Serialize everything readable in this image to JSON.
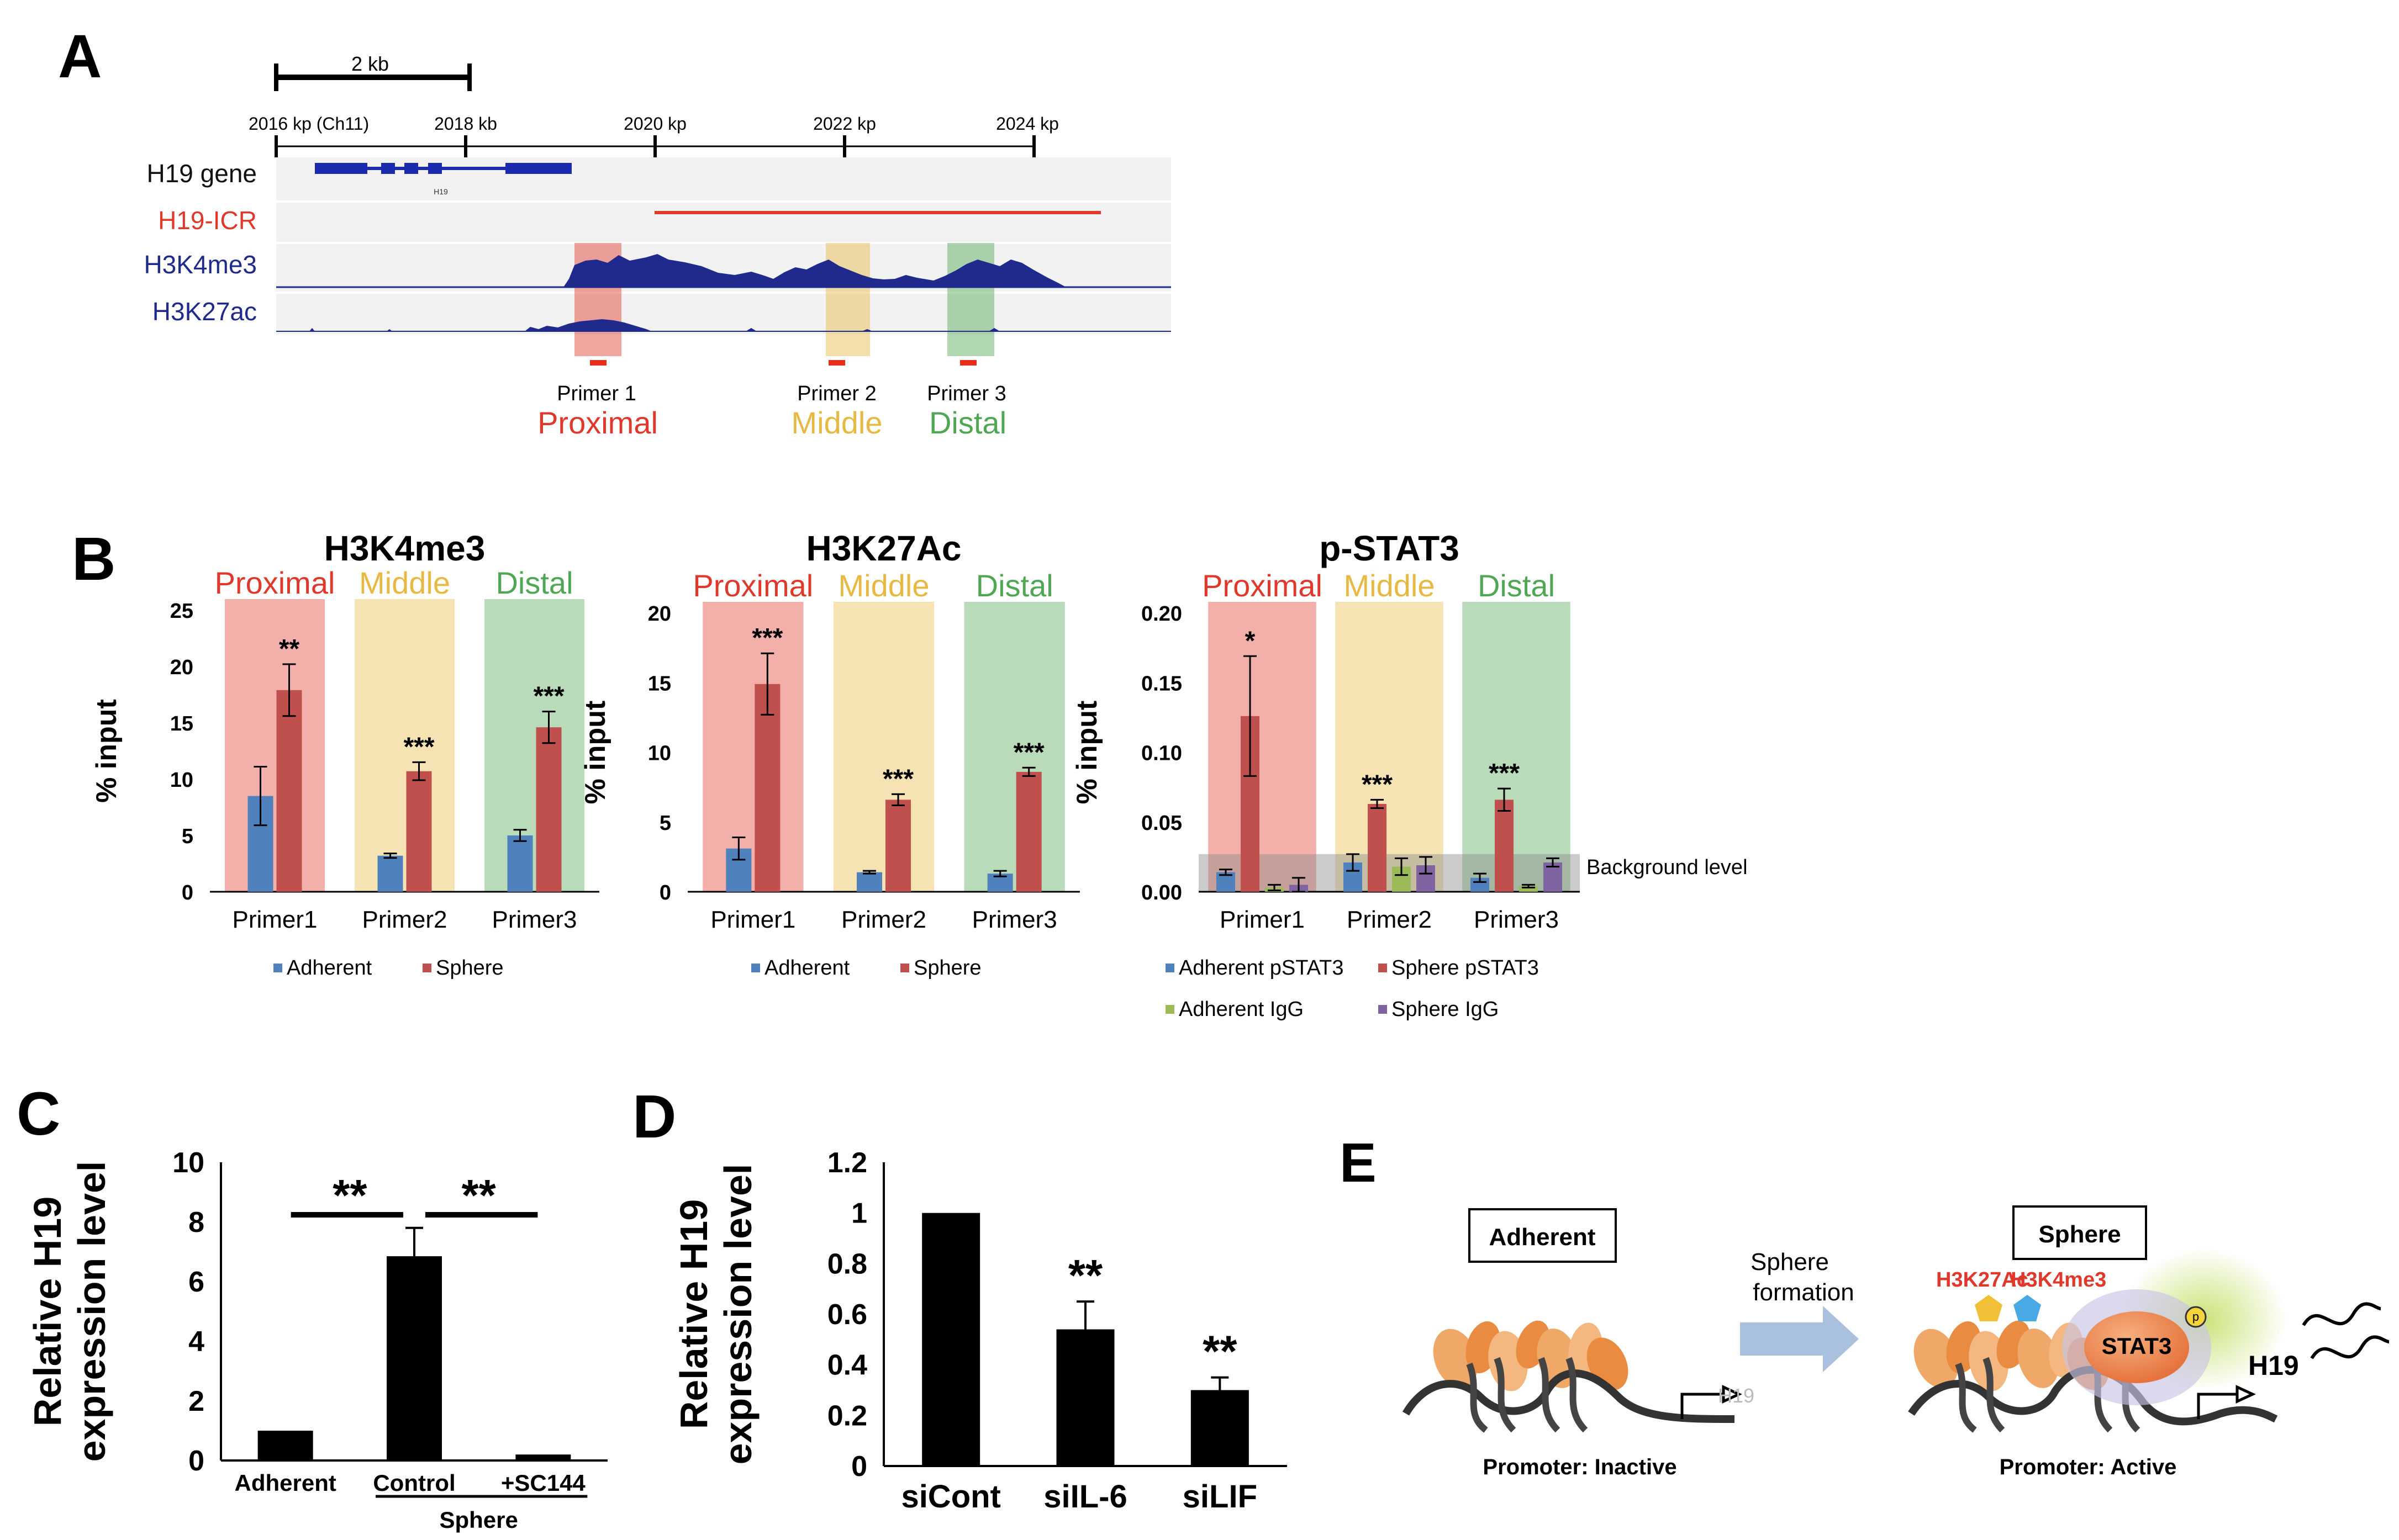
{
  "panel_a": {
    "label": "A",
    "scale_label": "2 kb",
    "coords": [
      "2016 kp (Ch11)",
      "2018 kb",
      "2020 kp",
      "2022 kp",
      "2024 kp"
    ],
    "tracks": [
      "H19 gene",
      "H19-ICR",
      "H3K4me3",
      "H3K27ac"
    ],
    "gene_name": "H19",
    "primers": [
      "Primer 1",
      "Primer 2",
      "Primer 3"
    ],
    "regions": [
      "Proximal",
      "Middle",
      "Distal"
    ],
    "colors": {
      "proximal": "#e0382b",
      "middle": "#e7b943",
      "distal": "#4fa653",
      "track": "#1f2a8c"
    }
  },
  "panel_b": {
    "label": "B",
    "region_labels": [
      "Proximal",
      "Middle",
      "Distal"
    ],
    "background_label": "Background level"
  },
  "panel_c": {
    "label": "C",
    "sphere_label": "Sphere",
    "significance": [
      "**",
      "**"
    ]
  },
  "panel_d": {
    "label": "D",
    "significance": [
      "**",
      "**"
    ]
  },
  "panel_e": {
    "label": "E",
    "adherent_box": "Adherent",
    "sphere_box": "Sphere",
    "transition": [
      "Sphere",
      "formation"
    ],
    "h3k27ac": "H3K27Ac",
    "h3k4me3": "H3K4me3",
    "stat3": "STAT3",
    "p": "p",
    "h19_inactive": "H19",
    "h19_active": "H19",
    "promoter_inactive": "Promoter: Inactive",
    "promoter_active": "Promoter: Active"
  },
  "chart_data": [
    {
      "id": "B1",
      "type": "bar",
      "title": "H3K4me3",
      "categories": [
        "Primer1",
        "Primer2",
        "Primer3"
      ],
      "ylabel": "% input",
      "ylim": [
        0,
        25
      ],
      "yticks": [
        "0",
        "5",
        "10",
        "15",
        "20",
        "25"
      ],
      "series": [
        {
          "name": "Adherent",
          "color": "#4f81bd",
          "values": [
            8.5,
            3.2,
            5.0
          ],
          "errors": [
            2.6,
            0.2,
            0.5
          ]
        },
        {
          "name": "Sphere",
          "color": "#c0504d",
          "values": [
            17.9,
            10.7,
            14.6
          ],
          "errors": [
            2.3,
            0.8,
            1.4
          ]
        }
      ],
      "annotations": [
        "**",
        "***",
        "***"
      ]
    },
    {
      "id": "B2",
      "type": "bar",
      "title": "H3K27Ac",
      "categories": [
        "Primer1",
        "Primer2",
        "Primer3"
      ],
      "ylabel": "% input",
      "ylim": [
        0,
        20
      ],
      "yticks": [
        "0",
        "5",
        "10",
        "15",
        "20"
      ],
      "series": [
        {
          "name": "Adherent",
          "color": "#4f81bd",
          "values": [
            3.1,
            1.4,
            1.3
          ],
          "errors": [
            0.8,
            0.1,
            0.2
          ]
        },
        {
          "name": "Sphere",
          "color": "#c0504d",
          "values": [
            14.9,
            6.6,
            8.6
          ],
          "errors": [
            2.2,
            0.4,
            0.3
          ]
        }
      ],
      "annotations": [
        "***",
        "***",
        "***"
      ]
    },
    {
      "id": "B3",
      "type": "bar",
      "title": "p-STAT3",
      "categories": [
        "Primer1",
        "Primer2",
        "Primer3"
      ],
      "ylabel": "% input",
      "ylim": [
        0,
        0.2
      ],
      "yticks": [
        "0.00",
        "0.05",
        "0.10",
        "0.15",
        "0.20"
      ],
      "background_level": 0.027,
      "series": [
        {
          "name": "Adherent pSTAT3",
          "color": "#4f81bd",
          "values": [
            0.014,
            0.021,
            0.01
          ],
          "errors": [
            0.002,
            0.006,
            0.003
          ]
        },
        {
          "name": "Sphere pSTAT3",
          "color": "#c0504d",
          "values": [
            0.126,
            0.063,
            0.066
          ],
          "errors": [
            0.043,
            0.003,
            0.008
          ]
        },
        {
          "name": "Adherent IgG",
          "color": "#9bbb59",
          "values": [
            0.003,
            0.018,
            0.004
          ],
          "errors": [
            0.002,
            0.006,
            0.001
          ]
        },
        {
          "name": "Sphere IgG",
          "color": "#8064a2",
          "values": [
            0.005,
            0.019,
            0.021
          ],
          "errors": [
            0.005,
            0.006,
            0.003
          ]
        }
      ],
      "annotations": [
        "*",
        "***",
        "***"
      ]
    },
    {
      "id": "C",
      "type": "bar",
      "categories": [
        "Adherent",
        "Control",
        "+SC144"
      ],
      "ylabel": "Relative H19 expression level",
      "ylim": [
        0,
        10
      ],
      "yticks": [
        "0",
        "2",
        "4",
        "6",
        "8",
        "10"
      ],
      "series": [
        {
          "name": "Relative H19 expression",
          "color": "#000000",
          "values": [
            1.0,
            6.85,
            0.2
          ],
          "errors": [
            0.0,
            0.95,
            0.05
          ]
        }
      ]
    },
    {
      "id": "D",
      "type": "bar",
      "categories": [
        "siCont",
        "siIL-6",
        "siLIF"
      ],
      "ylabel": "Relative H19 expression level",
      "ylim": [
        0,
        1.2
      ],
      "yticks": [
        "0",
        "0.2",
        "0.4",
        "0.6",
        "0.8",
        "1",
        "1.2"
      ],
      "series": [
        {
          "name": "Relative H19 expression",
          "color": "#000000",
          "values": [
            1.0,
            0.54,
            0.3
          ],
          "errors": [
            0.005,
            0.11,
            0.05
          ]
        }
      ],
      "annotations": [
        "",
        "**",
        "**"
      ]
    }
  ]
}
